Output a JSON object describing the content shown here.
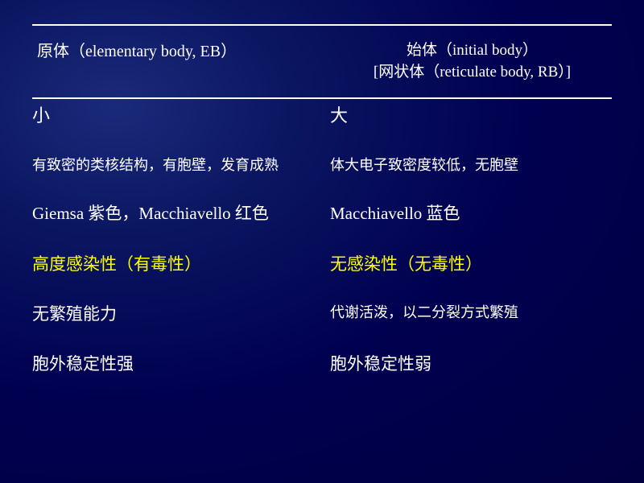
{
  "colors": {
    "text": "#ffffff",
    "highlight": "#ffff00",
    "rule": "#ffffff"
  },
  "header": {
    "left": "原体（elementary body, EB）",
    "right_line1": "始体（initial body）",
    "right_line2": "[网状体（reticulate body, RB）]"
  },
  "rows": [
    {
      "left": "小",
      "right": "大",
      "left_class": "sz-22",
      "right_class": "sz-22",
      "highlight": false
    },
    {
      "left": "有致密的类核结构，有胞壁，发育成熟",
      "right": "体大电子致密度较低，无胞壁",
      "left_class": "sz-18",
      "right_class": "sz-18",
      "highlight": false
    },
    {
      "left": "Giemsa  紫色，Macchiavello 红色",
      "right": "Macchiavello  蓝色",
      "left_class": "sz-21",
      "right_class": "sz-21",
      "highlight": false
    },
    {
      "left": "高度感染性（有毒性）",
      "right": "无感染性（无毒性）",
      "left_class": "sz-21",
      "right_class": "sz-21",
      "highlight": true
    },
    {
      "left": "无繁殖能力",
      "right": "代谢活泼，以二分裂方式繁殖",
      "left_class": "sz-21",
      "right_class": "sz-18",
      "highlight": false
    },
    {
      "left": "胞外稳定性强",
      "right": "胞外稳定性弱",
      "left_class": "sz-21",
      "right_class": "sz-21",
      "highlight": false
    }
  ]
}
